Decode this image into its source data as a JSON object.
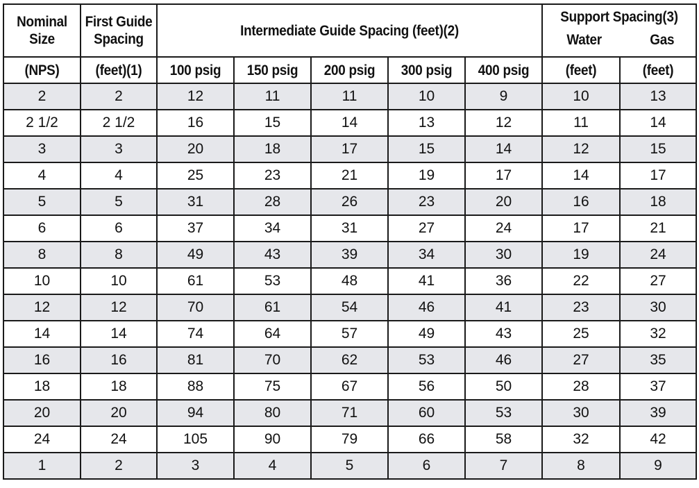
{
  "header": {
    "nominal_line1": "Nominal",
    "nominal_line2": "Size",
    "first_line1": "First Guide",
    "first_line2": "Spacing",
    "intermediate": "Intermediate Guide Spacing (feet)(2)",
    "support": "Support Spacing(3)",
    "support_water": "Water",
    "support_gas": "Gas",
    "nps": "(NPS)",
    "first_unit": "(feet)(1)",
    "psig": [
      "100 psig",
      "150 psig",
      "200 psig",
      "300 psig",
      "400 psig"
    ],
    "water_unit": "(feet)",
    "gas_unit": "(feet)"
  },
  "rows": [
    [
      "2",
      "2",
      "12",
      "11",
      "11",
      "10",
      "9",
      "10",
      "13"
    ],
    [
      "2 1/2",
      "2 1/2",
      "16",
      "15",
      "14",
      "13",
      "12",
      "11",
      "14"
    ],
    [
      "3",
      "3",
      "20",
      "18",
      "17",
      "15",
      "14",
      "12",
      "15"
    ],
    [
      "4",
      "4",
      "25",
      "23",
      "21",
      "19",
      "17",
      "14",
      "17"
    ],
    [
      "5",
      "5",
      "31",
      "28",
      "26",
      "23",
      "20",
      "16",
      "18"
    ],
    [
      "6",
      "6",
      "37",
      "34",
      "31",
      "27",
      "24",
      "17",
      "21"
    ],
    [
      "8",
      "8",
      "49",
      "43",
      "39",
      "34",
      "30",
      "19",
      "24"
    ],
    [
      "10",
      "10",
      "61",
      "53",
      "48",
      "41",
      "36",
      "22",
      "27"
    ],
    [
      "12",
      "12",
      "70",
      "61",
      "54",
      "46",
      "41",
      "23",
      "30"
    ],
    [
      "14",
      "14",
      "74",
      "64",
      "57",
      "49",
      "43",
      "25",
      "32"
    ],
    [
      "16",
      "16",
      "81",
      "70",
      "62",
      "53",
      "46",
      "27",
      "35"
    ],
    [
      "18",
      "18",
      "88",
      "75",
      "67",
      "56",
      "50",
      "28",
      "37"
    ],
    [
      "20",
      "20",
      "94",
      "80",
      "71",
      "60",
      "53",
      "30",
      "39"
    ],
    [
      "24",
      "24",
      "105",
      "90",
      "79",
      "66",
      "58",
      "32",
      "42"
    ],
    [
      "1",
      "2",
      "3",
      "4",
      "5",
      "6",
      "7",
      "8",
      "9"
    ]
  ]
}
